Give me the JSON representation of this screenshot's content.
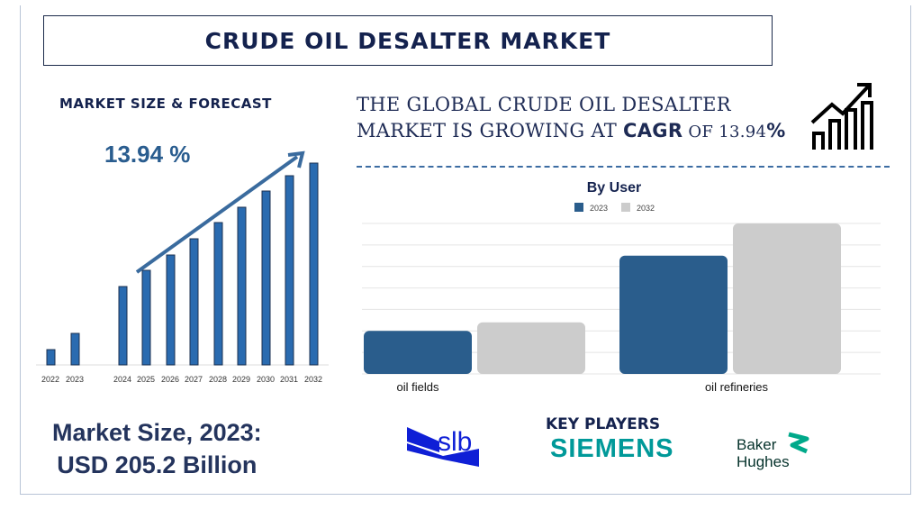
{
  "title": "CRUDE OIL DESALTER MARKET",
  "left_panel": {
    "heading": "MARKET SIZE & FORECAST",
    "cagr_label": "13.94 %",
    "market_size_line1": "Market Size, 2023:",
    "market_size_line2": "USD 205.2 Billion"
  },
  "headline": {
    "line1": "THE GLOBAL CRUDE OIL DESALTER",
    "line2_prefix": "MARKET IS GROWING AT ",
    "line2_bold": "CAGR",
    "line2_mid": " OF  13.94",
    "line2_suffix": "%"
  },
  "key_players": {
    "heading": "KEY PLAYERS",
    "slb": "slb",
    "siemens": "SIEMENS",
    "baker1": "Baker",
    "baker2": "Hughes"
  },
  "colors": {
    "navy": "#14224e",
    "bar_blue": "#2a6bb0",
    "series_2023": "#2a5d8c",
    "series_2032": "#cccccc",
    "siemens": "#009999",
    "slb": "#0f1fd6",
    "baker": "#00a98a"
  },
  "chart_data": [
    {
      "type": "bar",
      "title": "",
      "categories": [
        "2022",
        "2023",
        "2024",
        "2025",
        "2026",
        "2027",
        "2028",
        "2029",
        "2030",
        "2031",
        "2032"
      ],
      "values": [
        17,
        35,
        87,
        105,
        122,
        140,
        158,
        175,
        193,
        210,
        224
      ],
      "annotation": "13.94 %",
      "trend_arrow": true,
      "grid": false
    },
    {
      "type": "bar",
      "title": "By User",
      "categories": [
        "oil fields",
        "oil refineries"
      ],
      "series": [
        {
          "name": "2023",
          "values": [
            2.0,
            5.5
          ]
        },
        {
          "name": "2032",
          "values": [
            2.4,
            7.0
          ]
        }
      ],
      "ylim": [
        0,
        7
      ],
      "grid": true,
      "legend": "top-center"
    }
  ]
}
